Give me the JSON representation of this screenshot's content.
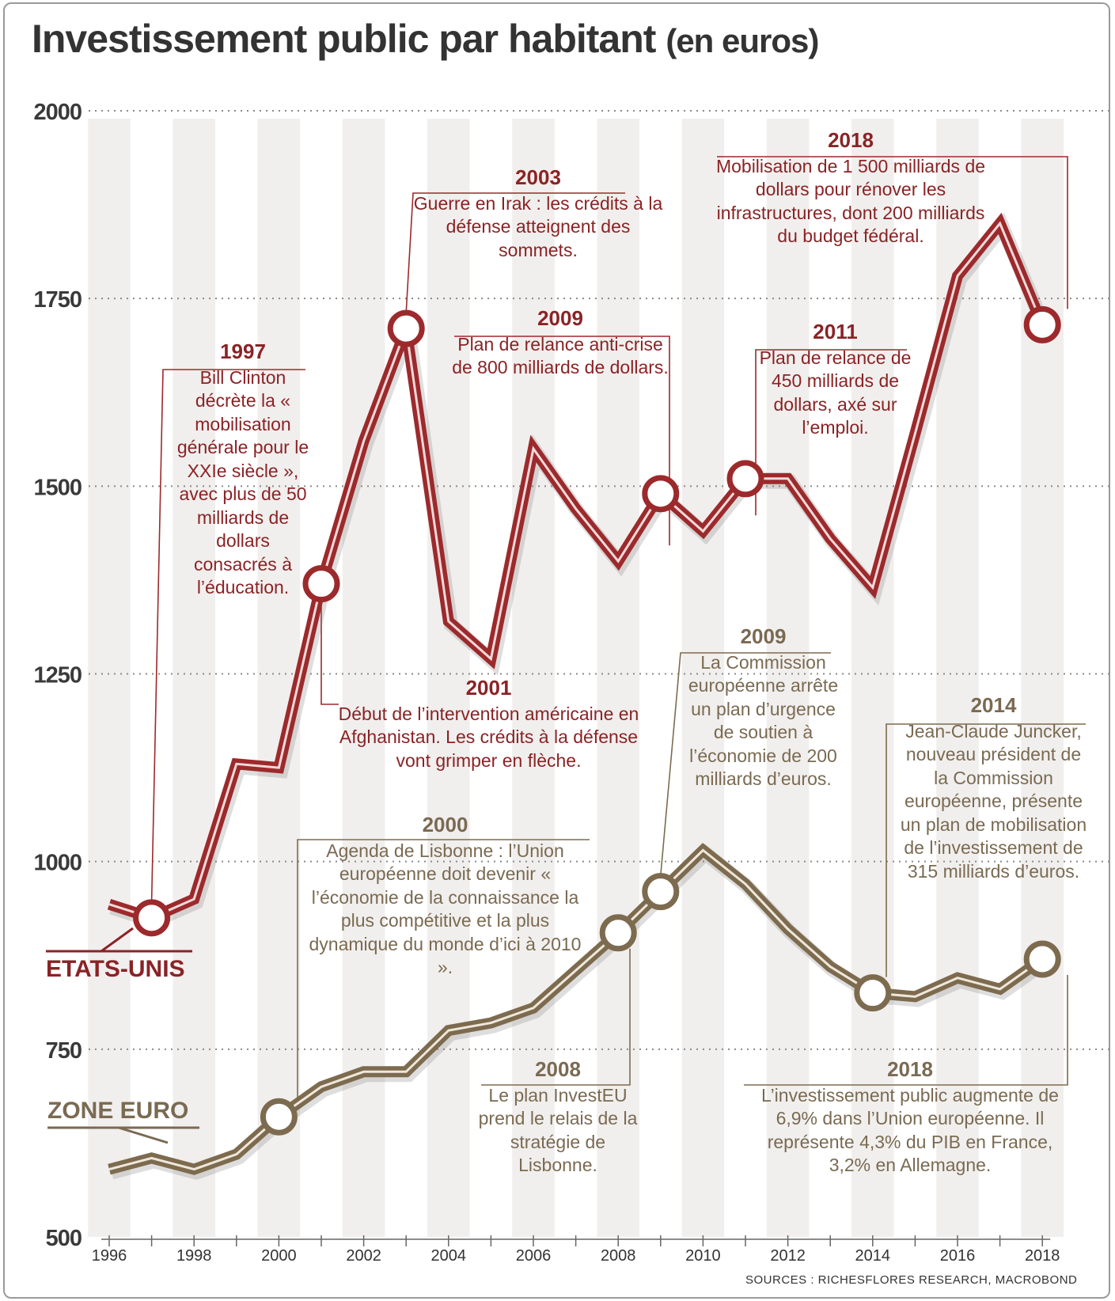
{
  "title": "Investissement public par habitant",
  "title_unit": "(en euros)",
  "source": "SOURCES : RICHESFLORES RESEARCH, MACROBOND",
  "colors": {
    "us": "#9c2a2c",
    "eu": "#7d6b4f",
    "us_text": "#8a2326",
    "eu_text": "#7a6a52"
  },
  "chart_data": {
    "type": "line",
    "title": "Investissement public par habitant (en euros)",
    "x": [
      1996,
      1997,
      1998,
      1999,
      2000,
      2001,
      2002,
      2003,
      2004,
      2005,
      2006,
      2007,
      2008,
      2009,
      2010,
      2011,
      2012,
      2013,
      2014,
      2015,
      2016,
      2017,
      2018
    ],
    "xticks": [
      "1996",
      "1998",
      "2000",
      "2002",
      "2004",
      "2006",
      "2008",
      "2010",
      "2012",
      "2014",
      "2016",
      "2018"
    ],
    "yticks": [
      "2000",
      "1750",
      "1500",
      "1250",
      "1000",
      "750",
      "500"
    ],
    "ylim": [
      500,
      2000
    ],
    "grid": true,
    "series": [
      {
        "name": "ETATS-UNIS",
        "values": [
          943,
          925,
          950,
          1130,
          1125,
          1370,
          1560,
          1710,
          1320,
          1270,
          1550,
          1470,
          1400,
          1490,
          1440,
          1510,
          1510,
          1430,
          1365,
          1570,
          1780,
          1850,
          1715
        ]
      },
      {
        "name": "ZONE EURO",
        "values": [
          590,
          605,
          590,
          610,
          660,
          700,
          720,
          720,
          775,
          785,
          805,
          855,
          905,
          960,
          1015,
          970,
          910,
          860,
          825,
          820,
          845,
          830,
          870
        ]
      }
    ],
    "highlighted": {
      "us": [
        1997,
        2001,
        2003,
        2009,
        2011,
        2018
      ],
      "eu": [
        2000,
        2008,
        2009,
        2014,
        2018
      ]
    }
  },
  "annotations": [
    {
      "id": "us-1997",
      "year": "1997",
      "text": "Bill Clinton décrète la « mobilisation générale pour le XXIe siècle », avec plus de 50 milliards de dollars consacrés à l’éducation."
    },
    {
      "id": "us-2003",
      "year": "2003",
      "text": "Guerre en Irak : les crédits à la défense atteignent des sommets."
    },
    {
      "id": "us-2018",
      "year": "2018",
      "text": "Mobilisation de 1 500 milliards de dollars pour rénover les infrastructures, dont 200 milliards du budget fédéral."
    },
    {
      "id": "us-2009",
      "year": "2009",
      "text": "Plan de relance anti-crise de 800 milliards de dollars."
    },
    {
      "id": "us-2011",
      "year": "2011",
      "text": "Plan de relance de 450 milliards de dollars, axé sur l’emploi."
    },
    {
      "id": "us-2001",
      "year": "2001",
      "text": "Début de l’intervention américaine en Afghanistan. Les crédits à la défense vont grimper en flèche."
    },
    {
      "id": "eu-2009",
      "year": "2009",
      "text": "La Commission européenne arrête un plan d’urgence de soutien à l’économie de 200 milliards d’euros."
    },
    {
      "id": "eu-2014",
      "year": "2014",
      "text": "Jean-Claude Juncker, nouveau président de la Commission européenne, présente un plan de mobilisation de l’investissement de 315 milliards d’euros."
    },
    {
      "id": "eu-2000",
      "year": "2000",
      "text": "Agenda de Lisbonne : l’Union européenne doit devenir « l’économie de la connaissance la plus compétitive et la plus dynamique du monde d’ici à 2010 »."
    },
    {
      "id": "eu-2008",
      "year": "2008",
      "text": "Le plan InvestEU prend le relais de la stratégie de Lisbonne."
    },
    {
      "id": "eu-2018",
      "year": "2018",
      "text": "L’investissement public augmente de 6,9% dans l’Union européenne. Il représente 4,3% du PIB en France, 3,2% en Allemagne."
    }
  ]
}
